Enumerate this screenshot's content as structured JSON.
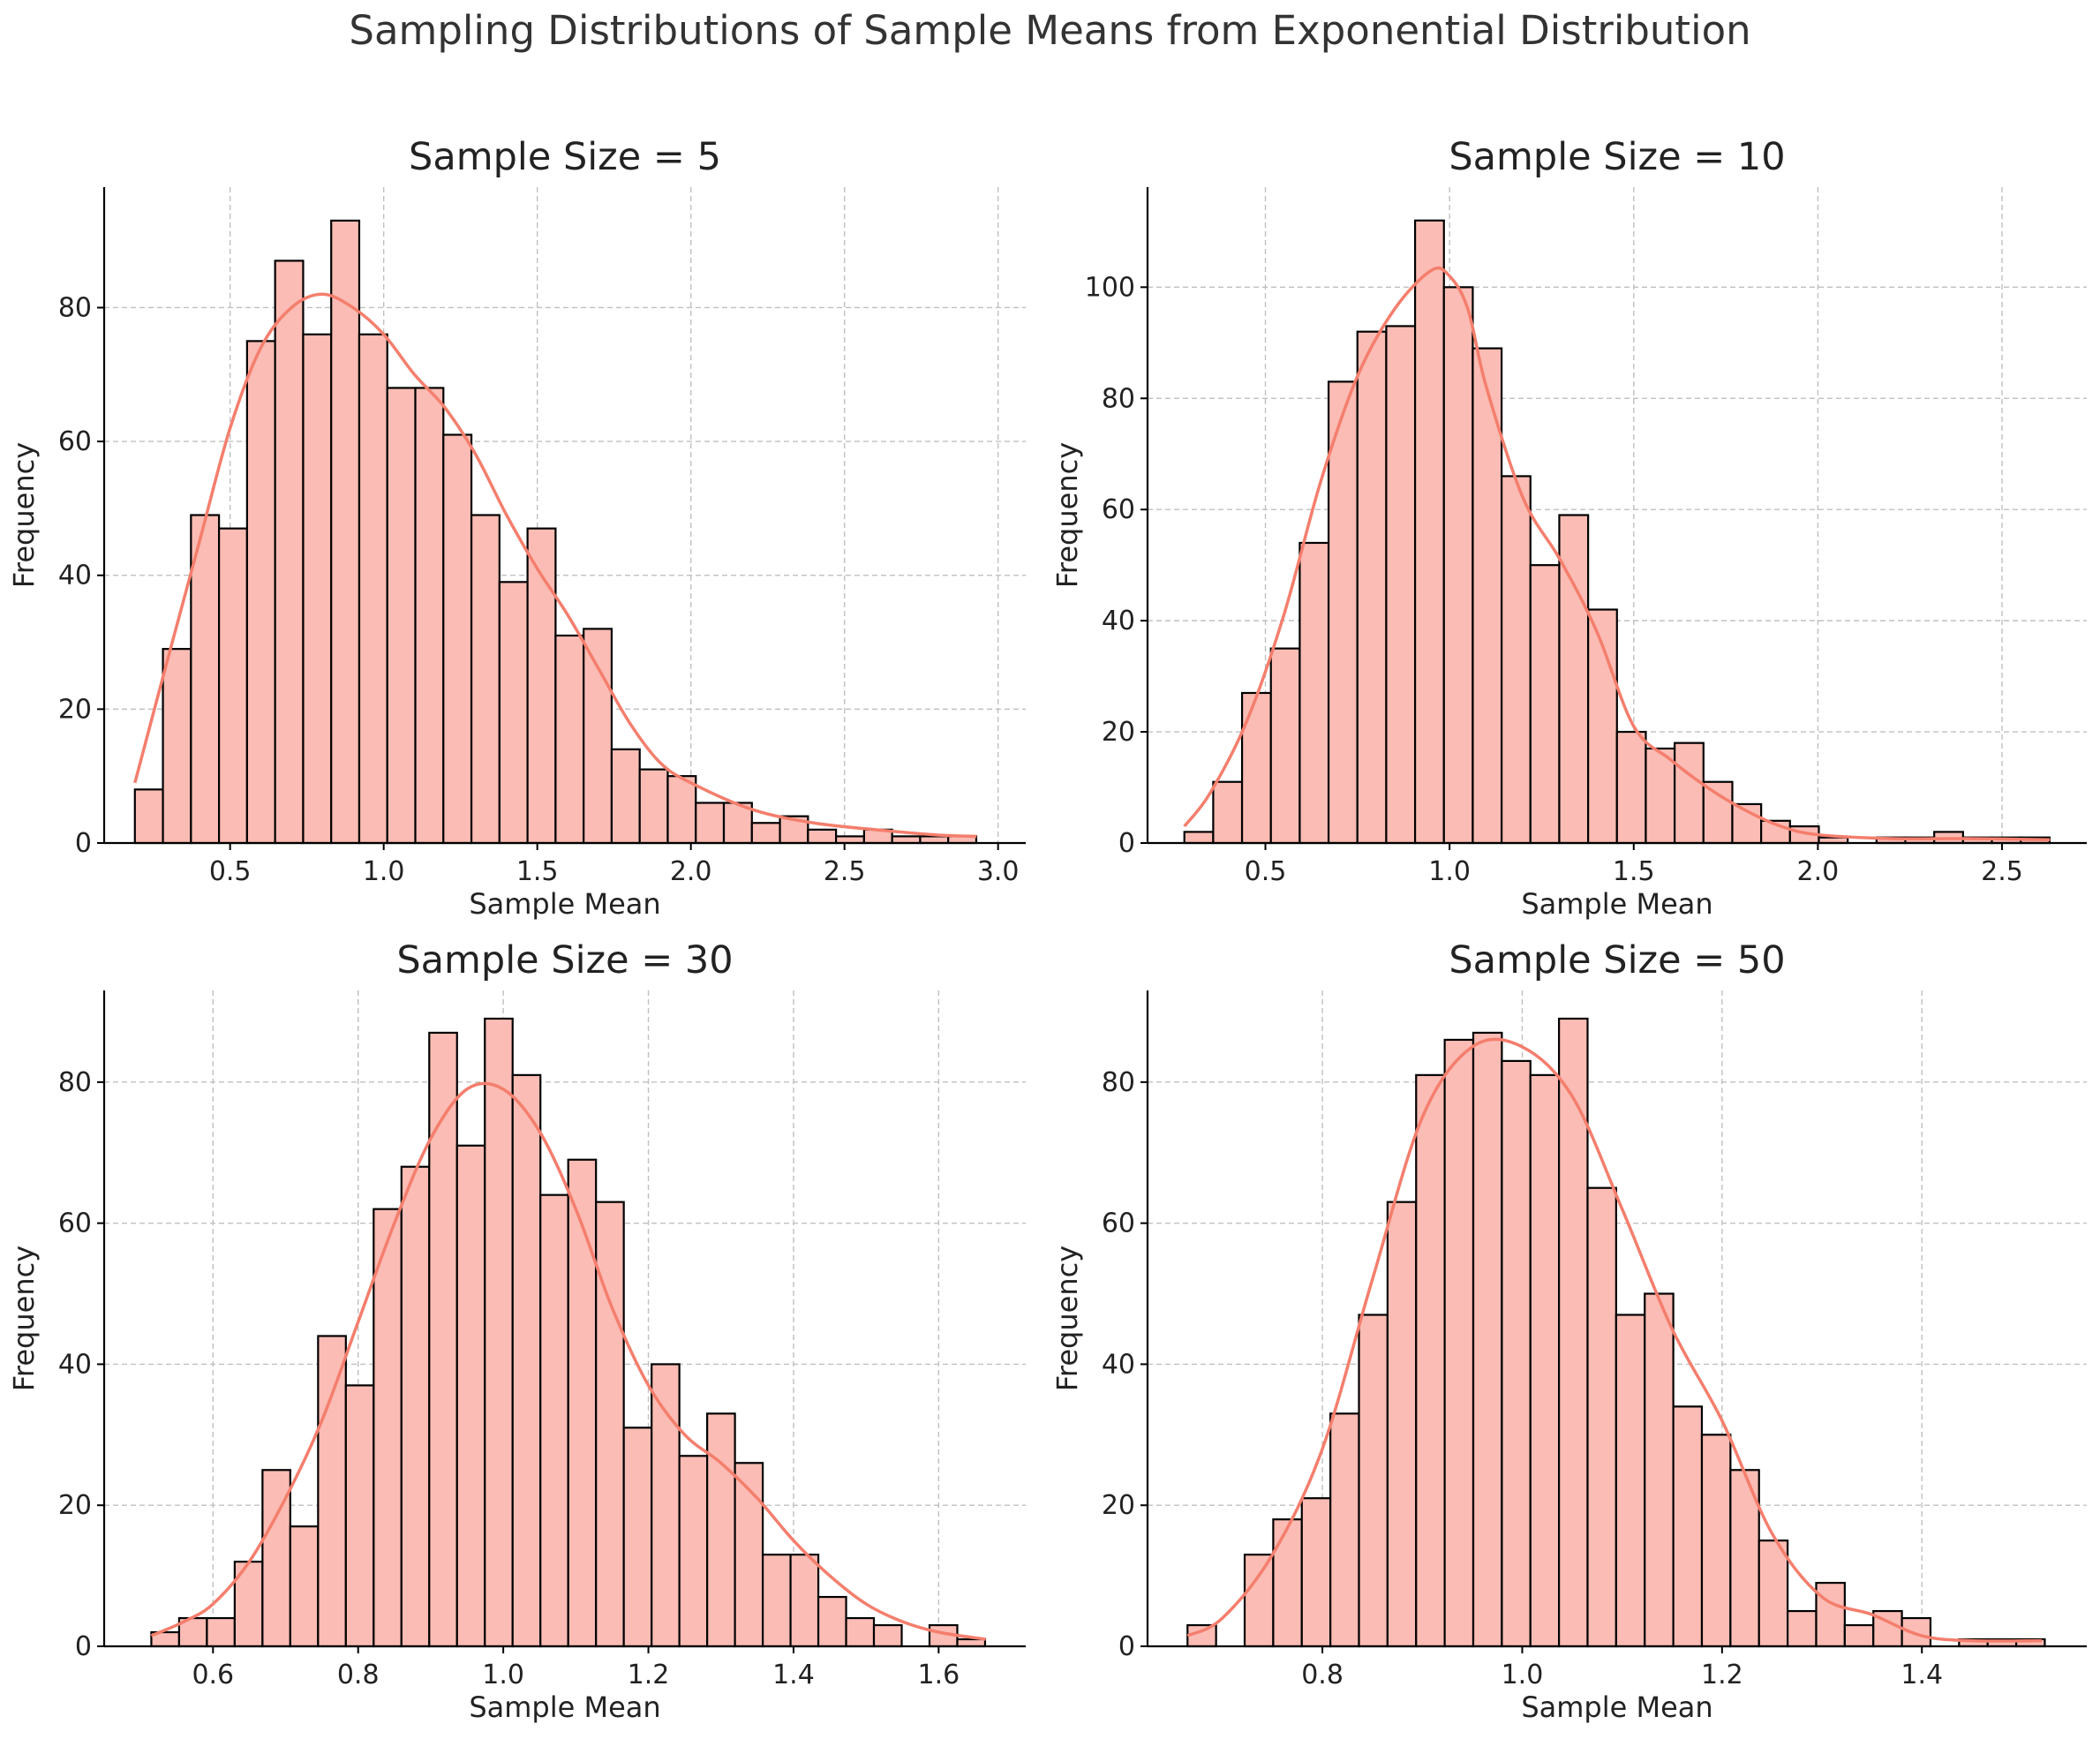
{
  "figure": {
    "suptitle": "Sampling Distributions of Sample Means from Exponential Distribution"
  },
  "style": {
    "bar_fill": "#fabcb4",
    "bar_edge": "#000000",
    "kde_color": "#f47e6d",
    "grid_color": "#c0c0c0",
    "text_color": "#222222"
  },
  "chart_data": [
    {
      "type": "bar",
      "title": "Sample Size = 5",
      "xlabel": "Sample Mean",
      "ylabel": "Frequency",
      "xlim": [
        0.09,
        3.09
      ],
      "ylim": [
        0,
        98
      ],
      "grid": true,
      "xticks": [
        0.5,
        1.0,
        1.5,
        2.0,
        2.5,
        3.0
      ],
      "xtick_labels": [
        "0.5",
        "1.0",
        "1.5",
        "2.0",
        "2.5",
        "3.0"
      ],
      "yticks": [
        0,
        20,
        40,
        60,
        80
      ],
      "yticks_labels": [
        "0",
        "20",
        "40",
        "60",
        "80"
      ],
      "bin_start": 0.19,
      "bin_width": 0.0913,
      "counts": [
        8,
        29,
        49,
        47,
        75,
        87,
        76,
        93,
        76,
        68,
        68,
        61,
        49,
        39,
        47,
        31,
        32,
        14,
        11,
        10,
        6,
        6,
        3,
        4,
        2,
        1,
        2,
        1,
        1,
        1
      ],
      "kde": {
        "x": [
          0.19,
          0.3,
          0.4,
          0.5,
          0.6,
          0.7,
          0.8,
          0.9,
          1.0,
          1.1,
          1.2,
          1.3,
          1.4,
          1.5,
          1.6,
          1.7,
          1.8,
          1.9,
          2.0,
          2.2,
          2.4,
          2.6,
          2.8,
          2.93
        ],
        "y": [
          9,
          28,
          45,
          62,
          74,
          80,
          82,
          80,
          76,
          70,
          65,
          58,
          49,
          41,
          34,
          26,
          18,
          12,
          9,
          5,
          3,
          2,
          1.2,
          1
        ]
      }
    },
    {
      "type": "bar",
      "title": "Sample Size = 10",
      "xlabel": "Sample Mean",
      "ylabel": "Frequency",
      "xlim": [
        0.18,
        2.73
      ],
      "ylim": [
        0,
        118
      ],
      "grid": true,
      "xticks": [
        0.5,
        1.0,
        1.5,
        2.0,
        2.5
      ],
      "xtick_labels": [
        "0.5",
        "1.0",
        "1.5",
        "2.0",
        "2.5"
      ],
      "yticks": [
        0,
        20,
        40,
        60,
        80,
        100
      ],
      "yticks_labels": [
        "0",
        "20",
        "40",
        "60",
        "80",
        "100"
      ],
      "bin_start": 0.28,
      "bin_width": 0.0783,
      "counts": [
        2,
        11,
        27,
        35,
        54,
        83,
        92,
        93,
        112,
        100,
        89,
        66,
        50,
        59,
        42,
        20,
        17,
        18,
        11,
        7,
        4,
        3,
        1,
        0,
        1,
        1,
        2,
        1,
        1,
        1
      ],
      "kde": {
        "x": [
          0.28,
          0.35,
          0.45,
          0.55,
          0.65,
          0.75,
          0.85,
          0.95,
          1.0,
          1.05,
          1.1,
          1.2,
          1.3,
          1.4,
          1.5,
          1.6,
          1.7,
          1.8,
          1.9,
          2.0,
          2.2,
          2.4,
          2.63
        ],
        "y": [
          3,
          9,
          22,
          41,
          65,
          84,
          96,
          103,
          102,
          96,
          82,
          62,
          51,
          38,
          21,
          15,
          10,
          6,
          3,
          1.5,
          0.8,
          0.8,
          0.6
        ]
      }
    },
    {
      "type": "bar",
      "title": "Sample Size = 30",
      "xlabel": "Sample Mean",
      "ylabel": "Frequency",
      "xlim": [
        0.45,
        1.72
      ],
      "ylim": [
        0,
        93
      ],
      "grid": true,
      "xticks": [
        0.6,
        0.8,
        1.0,
        1.2,
        1.4,
        1.6
      ],
      "xtick_labels": [
        "0.6",
        "0.8",
        "1.0",
        "1.2",
        "1.4",
        "1.6"
      ],
      "yticks": [
        0,
        20,
        40,
        60,
        80
      ],
      "yticks_labels": [
        "0",
        "20",
        "40",
        "60",
        "80"
      ],
      "bin_start": 0.515,
      "bin_width": 0.0383,
      "counts": [
        2,
        4,
        4,
        12,
        25,
        17,
        44,
        37,
        62,
        68,
        87,
        71,
        89,
        81,
        64,
        69,
        63,
        31,
        40,
        27,
        33,
        26,
        13,
        13,
        7,
        4,
        3,
        0,
        3,
        1
      ],
      "kde": {
        "x": [
          0.515,
          0.56,
          0.6,
          0.65,
          0.7,
          0.75,
          0.8,
          0.85,
          0.9,
          0.95,
          1.0,
          1.05,
          1.1,
          1.15,
          1.2,
          1.25,
          1.3,
          1.35,
          1.4,
          1.45,
          1.5,
          1.55,
          1.6,
          1.665
        ],
        "y": [
          1.5,
          3.5,
          6,
          12,
          21,
          32,
          46,
          60,
          72,
          79,
          79,
          73,
          62,
          48,
          37,
          30,
          26,
          21,
          15,
          10,
          6,
          3.5,
          2,
          1
        ]
      }
    },
    {
      "type": "bar",
      "title": "Sample Size = 50",
      "xlabel": "Sample Mean",
      "ylabel": "Frequency",
      "xlim": [
        0.625,
        1.565
      ],
      "ylim": [
        0,
        93
      ],
      "grid": true,
      "xticks": [
        0.8,
        1.0,
        1.2,
        1.4
      ],
      "xtick_labels": [
        "0.8",
        "1.0",
        "1.2",
        "1.4"
      ],
      "yticks": [
        0,
        20,
        40,
        60,
        80
      ],
      "yticks_labels": [
        "0",
        "20",
        "40",
        "60",
        "80"
      ],
      "bin_start": 0.665,
      "bin_width": 0.0286,
      "counts": [
        3,
        0,
        13,
        18,
        21,
        33,
        47,
        63,
        81,
        86,
        87,
        83,
        81,
        89,
        65,
        47,
        50,
        34,
        30,
        25,
        15,
        5,
        9,
        3,
        5,
        4,
        0,
        1,
        1,
        1
      ],
      "kde": {
        "x": [
          0.665,
          0.7,
          0.75,
          0.8,
          0.85,
          0.9,
          0.95,
          1.0,
          1.05,
          1.1,
          1.15,
          1.2,
          1.25,
          1.3,
          1.35,
          1.4,
          1.45,
          1.52
        ],
        "y": [
          1.5,
          4,
          13,
          28,
          52,
          75,
          85,
          85,
          78,
          62,
          45,
          32,
          16,
          7,
          4.5,
          1.5,
          0.8,
          0.8
        ]
      }
    }
  ]
}
